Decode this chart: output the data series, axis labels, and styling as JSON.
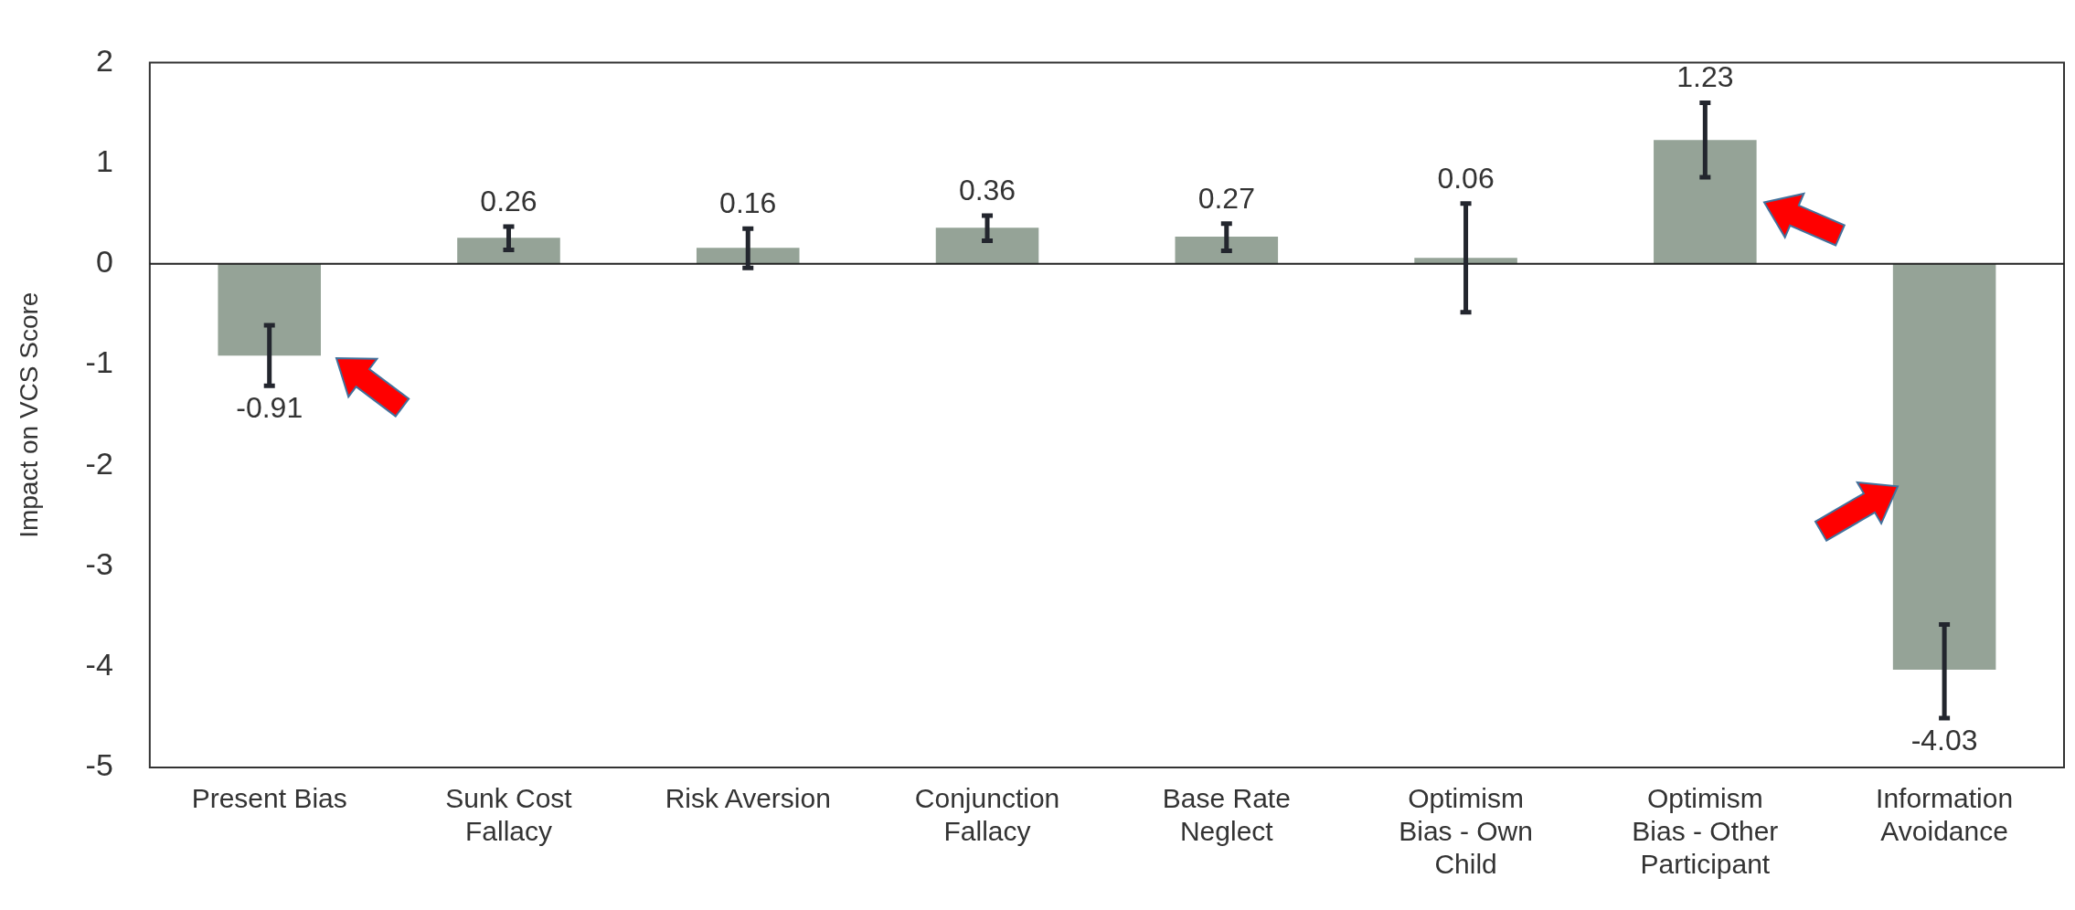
{
  "chart_data": {
    "type": "bar",
    "ylabel": "Impact on VCS Score",
    "categories": [
      "Present Bias",
      "Sunk Cost Fallacy",
      "Risk Aversion",
      "Conjunction Fallacy",
      "Base Rate Neglect",
      "Optimism Bias - Own Child",
      "Optimism Bias - Other Participant",
      "Information Avoidance"
    ],
    "values": [
      -0.91,
      0.26,
      0.16,
      0.36,
      0.27,
      0.06,
      1.23,
      -4.03
    ],
    "errors": [
      [
        -1.21,
        -0.61
      ],
      [
        0.14,
        0.37
      ],
      [
        -0.04,
        0.35
      ],
      [
        0.23,
        0.48
      ],
      [
        0.13,
        0.4
      ],
      [
        -0.48,
        0.6
      ],
      [
        0.86,
        1.6
      ],
      [
        -4.51,
        -3.58
      ]
    ],
    "color": "#95a397",
    "data_labels": true,
    "legend": false,
    "ylim": [
      -5,
      2
    ],
    "yticks": [
      -5,
      -4,
      -3,
      -2,
      -1,
      0,
      1,
      2
    ]
  }
}
